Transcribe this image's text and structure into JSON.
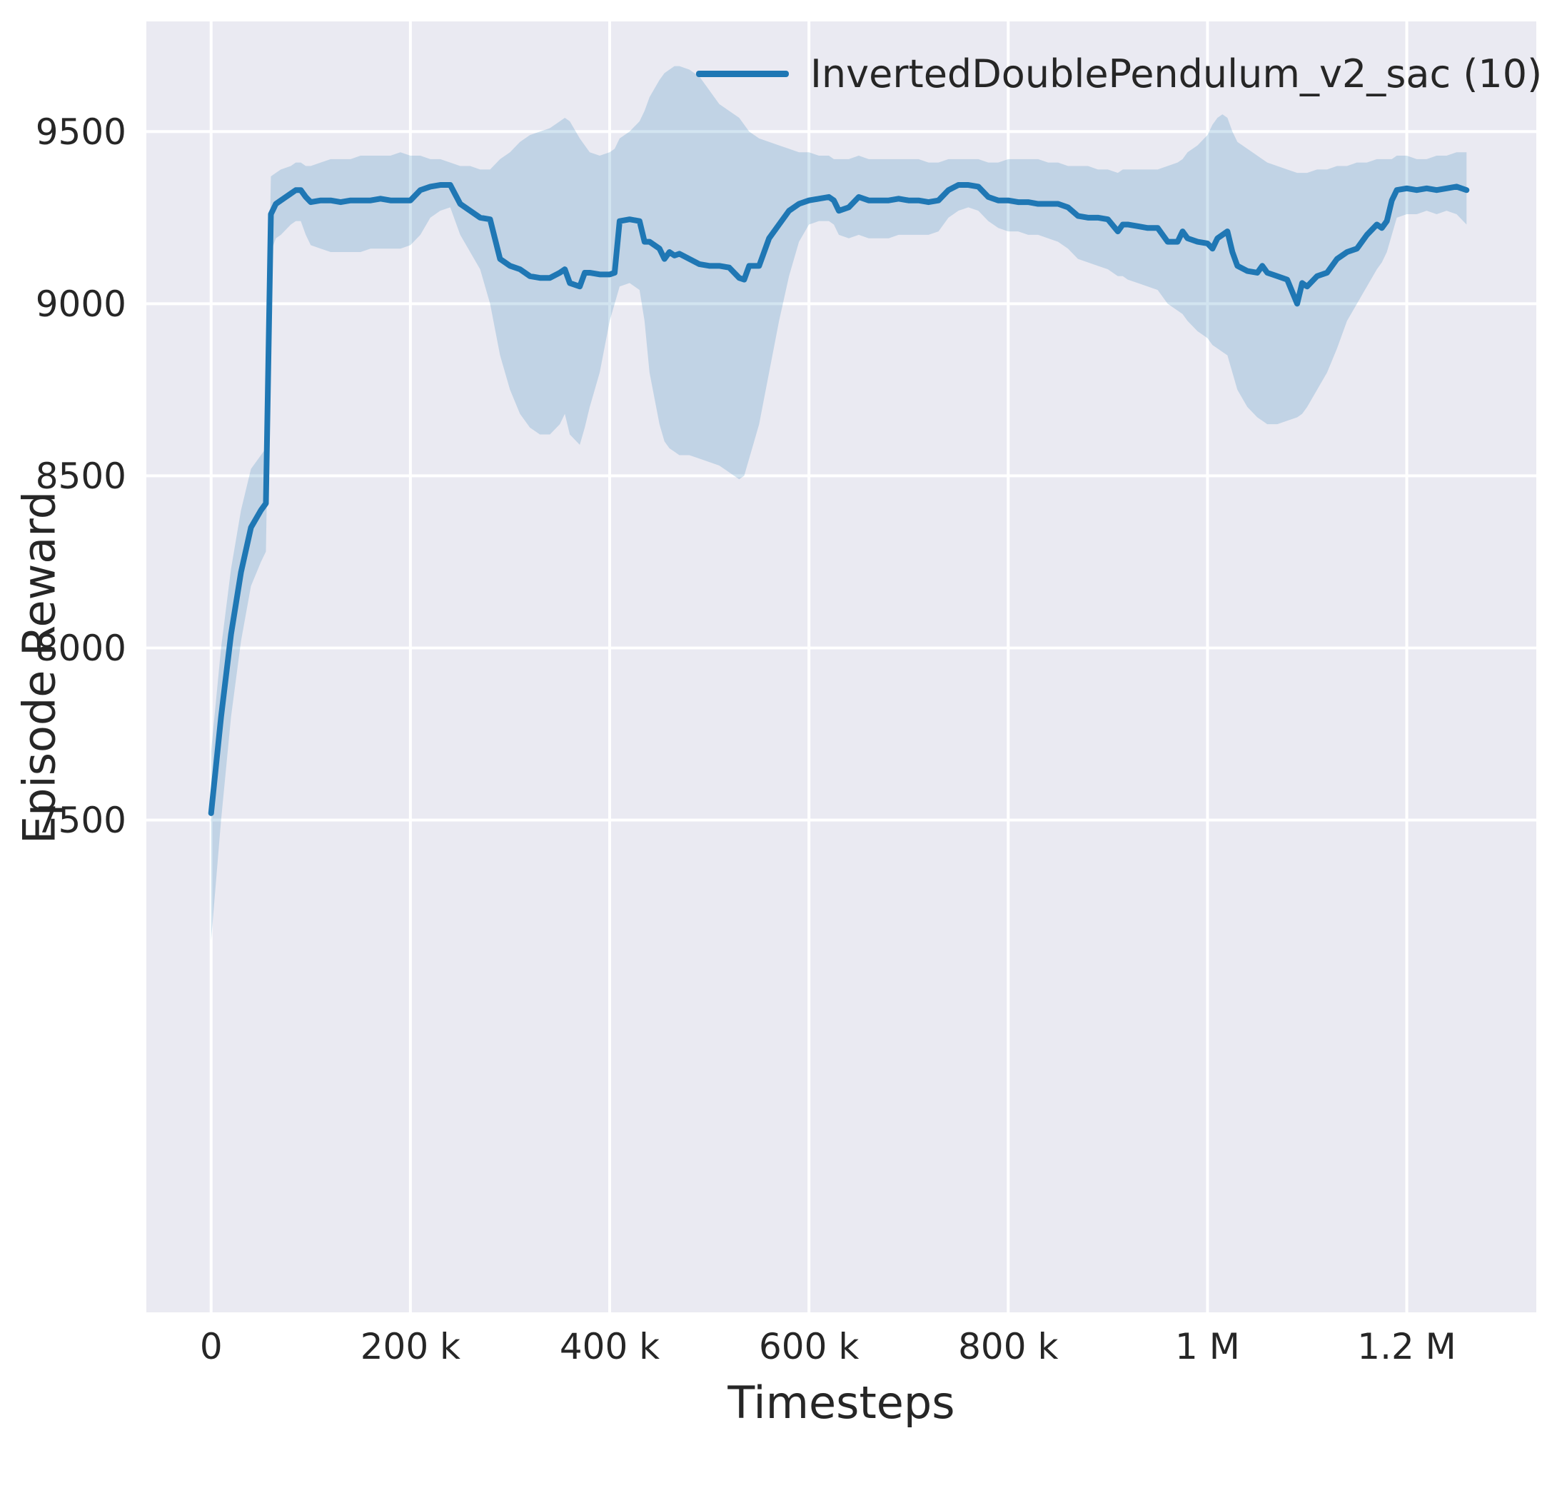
{
  "figure": {
    "background": "#ffffff",
    "plot_background": "#eaeaf2",
    "grid_color": "#ffffff",
    "tick_color": "#262626",
    "text_color": "#262626"
  },
  "chart_data": {
    "type": "line",
    "title": "",
    "xlabel": "Timesteps",
    "ylabel": "Episode Reward",
    "x_units": "timesteps (x values stored in thousands of timesteps)",
    "xlim": [
      -65,
      1330
    ],
    "ylim": [
      6070,
      9820
    ],
    "grid": true,
    "legend_position": "upper center-right",
    "legend_frame": false,
    "xticks": [
      {
        "value": 0,
        "label": "0"
      },
      {
        "value": 200,
        "label": "200 k"
      },
      {
        "value": 400,
        "label": "400 k"
      },
      {
        "value": 600,
        "label": "600 k"
      },
      {
        "value": 800,
        "label": "800 k"
      },
      {
        "value": 1000,
        "label": "1 M"
      },
      {
        "value": 1200,
        "label": "1.2 M"
      }
    ],
    "yticks": [
      {
        "value": 7500,
        "label": "7500"
      },
      {
        "value": 8000,
        "label": "8000"
      },
      {
        "value": 8500,
        "label": "8500"
      },
      {
        "value": 9000,
        "label": "9000"
      },
      {
        "value": 9500,
        "label": "9500"
      }
    ],
    "series": [
      {
        "name": "InvertedDoublePendulum_v2_sac (10)",
        "color": "#1f77b4",
        "band_color": "rgba(31,119,180,0.2)",
        "x": [
          0,
          10,
          20,
          30,
          40,
          50,
          55,
          60,
          65,
          70,
          80,
          85,
          90,
          95,
          100,
          110,
          120,
          130,
          140,
          150,
          160,
          170,
          180,
          190,
          200,
          210,
          220,
          230,
          240,
          250,
          260,
          270,
          280,
          290,
          300,
          310,
          320,
          330,
          340,
          350,
          355,
          360,
          370,
          375,
          380,
          390,
          400,
          405,
          410,
          420,
          430,
          435,
          440,
          450,
          455,
          460,
          465,
          470,
          480,
          490,
          500,
          510,
          520,
          530,
          535,
          540,
          550,
          560,
          570,
          580,
          590,
          600,
          610,
          620,
          625,
          630,
          640,
          650,
          660,
          670,
          680,
          690,
          700,
          710,
          720,
          730,
          740,
          750,
          760,
          770,
          780,
          790,
          800,
          810,
          820,
          830,
          840,
          850,
          860,
          870,
          880,
          890,
          900,
          910,
          915,
          920,
          930,
          940,
          950,
          960,
          970,
          975,
          980,
          990,
          1000,
          1005,
          1010,
          1015,
          1020,
          1025,
          1030,
          1040,
          1050,
          1055,
          1060,
          1070,
          1080,
          1090,
          1095,
          1100,
          1110,
          1120,
          1130,
          1140,
          1150,
          1160,
          1170,
          1175,
          1180,
          1185,
          1190,
          1200,
          1210,
          1220,
          1230,
          1240,
          1250,
          1260
        ],
        "mean": [
          7520,
          7800,
          8040,
          8220,
          8350,
          8400,
          8420,
          9260,
          9290,
          9300,
          9320,
          9330,
          9330,
          9310,
          9295,
          9300,
          9300,
          9295,
          9300,
          9300,
          9300,
          9305,
          9300,
          9300,
          9300,
          9330,
          9340,
          9345,
          9345,
          9290,
          9270,
          9250,
          9245,
          9130,
          9110,
          9100,
          9080,
          9075,
          9075,
          9090,
          9100,
          9060,
          9050,
          9090,
          9090,
          9085,
          9085,
          9090,
          9240,
          9245,
          9240,
          9180,
          9180,
          9160,
          9130,
          9150,
          9140,
          9145,
          9130,
          9115,
          9110,
          9110,
          9105,
          9075,
          9070,
          9110,
          9110,
          9190,
          9230,
          9270,
          9290,
          9300,
          9305,
          9310,
          9300,
          9270,
          9280,
          9310,
          9300,
          9300,
          9300,
          9305,
          9300,
          9300,
          9295,
          9300,
          9330,
          9345,
          9345,
          9340,
          9310,
          9300,
          9300,
          9295,
          9295,
          9290,
          9290,
          9290,
          9280,
          9255,
          9250,
          9250,
          9245,
          9210,
          9230,
          9230,
          9225,
          9220,
          9220,
          9180,
          9180,
          9210,
          9190,
          9180,
          9175,
          9160,
          9190,
          9200,
          9210,
          9150,
          9110,
          9095,
          9090,
          9110,
          9090,
          9080,
          9070,
          9000,
          9060,
          9050,
          9080,
          9090,
          9130,
          9150,
          9160,
          9200,
          9230,
          9220,
          9240,
          9300,
          9330,
          9335,
          9330,
          9335,
          9330,
          9335,
          9340,
          9330
        ],
        "band_low": [
          7150,
          7500,
          7800,
          8020,
          8180,
          8250,
          8280,
          9150,
          9190,
          9200,
          9230,
          9240,
          9240,
          9200,
          9170,
          9160,
          9150,
          9150,
          9150,
          9150,
          9160,
          9160,
          9160,
          9160,
          9170,
          9200,
          9250,
          9270,
          9280,
          9200,
          9150,
          9100,
          9000,
          8850,
          8750,
          8680,
          8640,
          8620,
          8620,
          8650,
          8680,
          8620,
          8590,
          8640,
          8700,
          8800,
          8950,
          9000,
          9050,
          9060,
          9040,
          8950,
          8800,
          8650,
          8600,
          8580,
          8570,
          8560,
          8560,
          8550,
          8540,
          8530,
          8510,
          8490,
          8500,
          8550,
          8650,
          8800,
          8950,
          9080,
          9180,
          9230,
          9240,
          9240,
          9230,
          9200,
          9190,
          9200,
          9190,
          9190,
          9190,
          9200,
          9200,
          9200,
          9200,
          9210,
          9250,
          9270,
          9280,
          9270,
          9240,
          9220,
          9210,
          9210,
          9200,
          9200,
          9190,
          9180,
          9160,
          9130,
          9120,
          9110,
          9100,
          9080,
          9080,
          9070,
          9060,
          9050,
          9040,
          9000,
          8980,
          8970,
          8950,
          8920,
          8900,
          8880,
          8870,
          8860,
          8850,
          8800,
          8750,
          8700,
          8670,
          8660,
          8650,
          8650,
          8660,
          8670,
          8680,
          8700,
          8750,
          8800,
          8870,
          8950,
          9000,
          9050,
          9100,
          9120,
          9150,
          9200,
          9250,
          9260,
          9260,
          9270,
          9260,
          9270,
          9260,
          9230
        ],
        "band_high": [
          7700,
          8000,
          8230,
          8400,
          8520,
          8560,
          8580,
          9370,
          9380,
          9390,
          9400,
          9410,
          9410,
          9400,
          9400,
          9410,
          9420,
          9420,
          9420,
          9430,
          9430,
          9430,
          9430,
          9440,
          9430,
          9430,
          9420,
          9420,
          9410,
          9400,
          9400,
          9390,
          9390,
          9420,
          9440,
          9470,
          9490,
          9500,
          9510,
          9530,
          9540,
          9530,
          9480,
          9460,
          9440,
          9430,
          9440,
          9450,
          9480,
          9500,
          9530,
          9560,
          9600,
          9650,
          9670,
          9680,
          9690,
          9690,
          9680,
          9660,
          9620,
          9580,
          9560,
          9540,
          9520,
          9500,
          9480,
          9470,
          9460,
          9450,
          9440,
          9440,
          9430,
          9430,
          9420,
          9420,
          9420,
          9430,
          9420,
          9420,
          9420,
          9420,
          9420,
          9420,
          9410,
          9410,
          9420,
          9420,
          9420,
          9420,
          9410,
          9410,
          9420,
          9420,
          9420,
          9420,
          9410,
          9410,
          9400,
          9400,
          9400,
          9390,
          9390,
          9380,
          9390,
          9390,
          9390,
          9390,
          9390,
          9400,
          9410,
          9420,
          9440,
          9460,
          9490,
          9520,
          9540,
          9550,
          9540,
          9500,
          9470,
          9450,
          9430,
          9420,
          9410,
          9400,
          9390,
          9380,
          9380,
          9380,
          9390,
          9390,
          9400,
          9400,
          9410,
          9410,
          9420,
          9420,
          9420,
          9420,
          9430,
          9430,
          9420,
          9420,
          9430,
          9430,
          9440,
          9440
        ]
      }
    ]
  }
}
